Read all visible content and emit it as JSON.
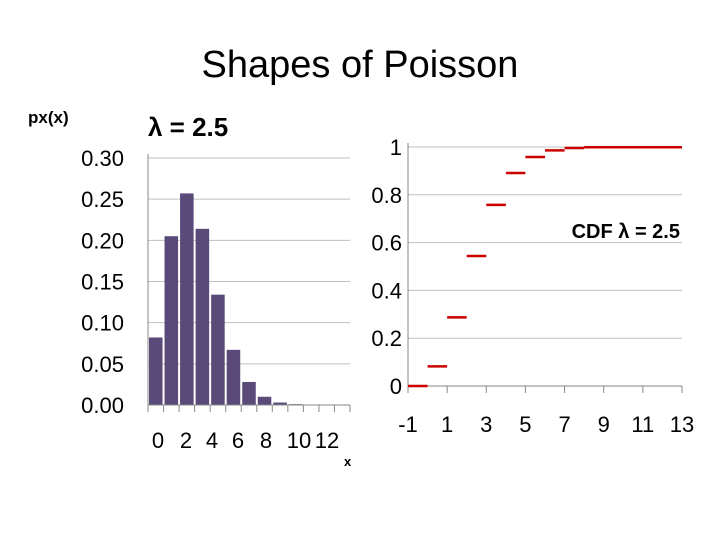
{
  "slide": {
    "title": "Shapes of Poisson",
    "ylabel": "px(x)",
    "pmf_heading": "λ = 2.5",
    "x_caption": "x"
  },
  "chart_data": [
    {
      "type": "bar",
      "categories": [
        0,
        1,
        2,
        3,
        4,
        5,
        6,
        7,
        8,
        9,
        10,
        11,
        12
      ],
      "values": [
        0.082,
        0.205,
        0.257,
        0.214,
        0.134,
        0.067,
        0.028,
        0.01,
        0.003,
        0.001,
        0.0002,
        0.0,
        0.0
      ],
      "ylim": [
        0,
        0.3
      ],
      "y_ticks": [
        "0.00",
        "0.05",
        "0.10",
        "0.15",
        "0.20",
        "0.25",
        "0.30"
      ],
      "x_tick_labels": [
        "0",
        "2",
        "4",
        "6",
        "8",
        "10",
        "12"
      ],
      "grid": true,
      "bar_color": "#5a4a7a"
    },
    {
      "type": "line",
      "style": "step",
      "label": "CDF λ = 2.5",
      "x": [
        -1,
        0,
        1,
        2,
        3,
        4,
        5,
        6,
        7,
        8,
        13
      ],
      "y": [
        0,
        0.082,
        0.287,
        0.544,
        0.758,
        0.891,
        0.958,
        0.986,
        0.996,
        0.999,
        1.0
      ],
      "xlim": [
        -1,
        13
      ],
      "ylim": [
        0,
        1
      ],
      "y_ticks": [
        "0",
        "0.2",
        "0.4",
        "0.6",
        "0.8",
        "1"
      ],
      "x_ticks": [
        "-1",
        "1",
        "3",
        "5",
        "7",
        "9",
        "11",
        "13"
      ],
      "grid": true,
      "line_color": "#cc0000"
    }
  ]
}
